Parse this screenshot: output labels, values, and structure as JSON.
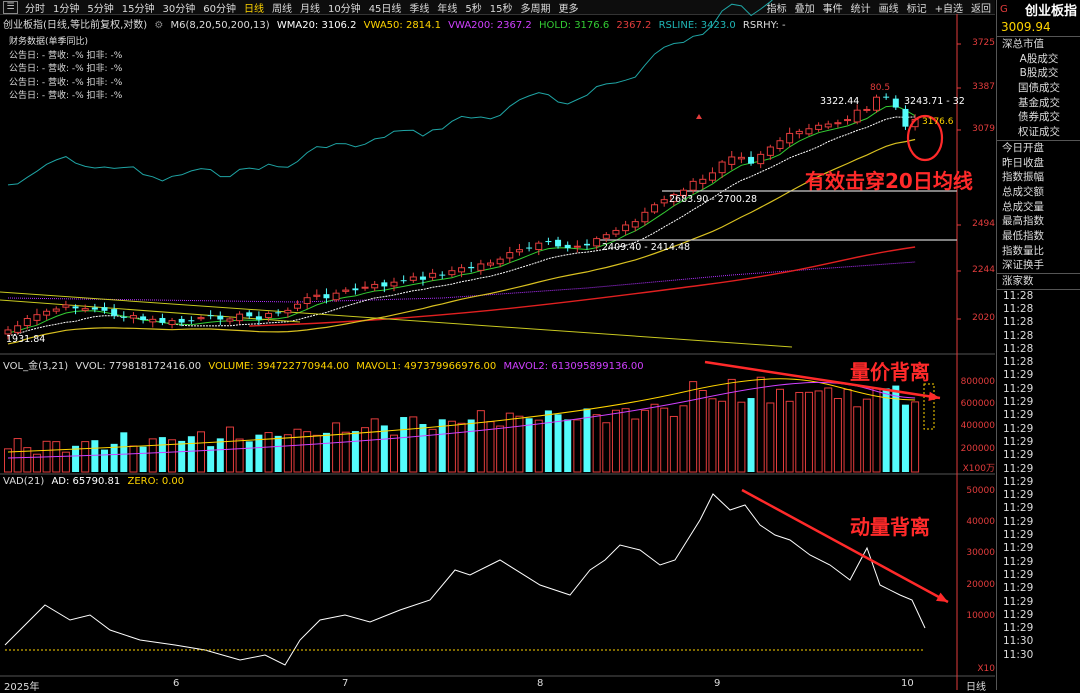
{
  "toolbar": {
    "periods": [
      "分时",
      "1分钟",
      "5分钟",
      "15分钟",
      "30分钟",
      "60分钟",
      "日线",
      "周线",
      "月线",
      "10分钟",
      "45日线",
      "季线",
      "年线",
      "5秒",
      "15秒",
      "多周期",
      "更多"
    ],
    "active_period": "日线",
    "tools": [
      "指标",
      "叠加",
      "事件",
      "统计",
      "画线",
      "标记",
      "+自选",
      "返回"
    ]
  },
  "title": {
    "name": "创业板指(日线,等比前复权,对数)",
    "ma": "M6(8,20,50,200,13)",
    "wma20": "WMA20: 3106.2",
    "vwa50": "VWA50: 2814.1",
    "vwa200": "VWA200: 2367.2",
    "hold": "HOLD: 3176.6",
    "hold2": "2367.2",
    "rsline": "RSLINE: 3423.0",
    "rsrhy": "RSRHY: -"
  },
  "finance": {
    "header": "财务数据(单季同比)",
    "rows": [
      "公告日: -   营收: -%   扣非: -%",
      "公告日: -   营收: -%   扣非: -%",
      "公告日: -   营收: -%   扣非: -%",
      "公告日: -   营收: -%   扣非: -%"
    ]
  },
  "price_axis": [
    "3725",
    "3387",
    "3079",
    "2494",
    "2244",
    "2020"
  ],
  "price_labels": {
    "high": "80.5",
    "recent_high": "3322.44",
    "range_top": "3243.71 - 32",
    "last": "3176.6",
    "level1": "2683.90 - 2700.28",
    "level2": "2409.40 - 2414.48",
    "low": "1931.84"
  },
  "volume": {
    "title": "VOL_金(3,21)",
    "vvol": "VVOL: 779818172416.00",
    "volume": "VOLUME: 394722770944.00",
    "mavol1": "MAVOL1: 497379966976.00",
    "mavol2": "MAVOL2: 613095899136.00",
    "axis": [
      "800000",
      "600000",
      "400000",
      "200000"
    ],
    "unit": "X100万"
  },
  "vad": {
    "title": "VAD(21)",
    "ad": "AD: 65790.81",
    "zero": "ZERO: 0.00",
    "axis": [
      "50000",
      "40000",
      "30000",
      "20000",
      "10000"
    ],
    "unit": "X10"
  },
  "x_labels": [
    "2025年",
    "6",
    "7",
    "8",
    "9",
    "10"
  ],
  "x_unit": "日线",
  "annotations": {
    "break_ma20": "有效击穿20日均线",
    "price_volume": "量价背离",
    "momentum": "动量背离"
  },
  "right_panel": {
    "flag": "G",
    "name": "创业板指",
    "price": "3009.94",
    "items": [
      "深总市值",
      "A股成交",
      "B股成交",
      "国债成交",
      "基金成交",
      "债券成交",
      "权证成交",
      "今日开盘",
      "昨日收盘",
      "指数振幅",
      "总成交额",
      "总成交量",
      "最高指数",
      "最低指数",
      "指数量比",
      "深证换手",
      "涨家数"
    ],
    "times": [
      "11:28",
      "11:28",
      "11:28",
      "11:28",
      "11:28",
      "11:28",
      "11:29",
      "11:29",
      "11:29",
      "11:29",
      "11:29",
      "11:29",
      "11:29",
      "11:29",
      "11:29",
      "11:29",
      "11:29",
      "11:29",
      "11:29",
      "11:29",
      "11:29",
      "11:29",
      "11:29",
      "11:29",
      "11:29",
      "11:29",
      "11:30",
      "11:30"
    ]
  },
  "colors": {
    "up": "#e23c3c",
    "down": "#54fcfc",
    "accent": "#ffd400",
    "annotation": "#ff2a2a"
  }
}
